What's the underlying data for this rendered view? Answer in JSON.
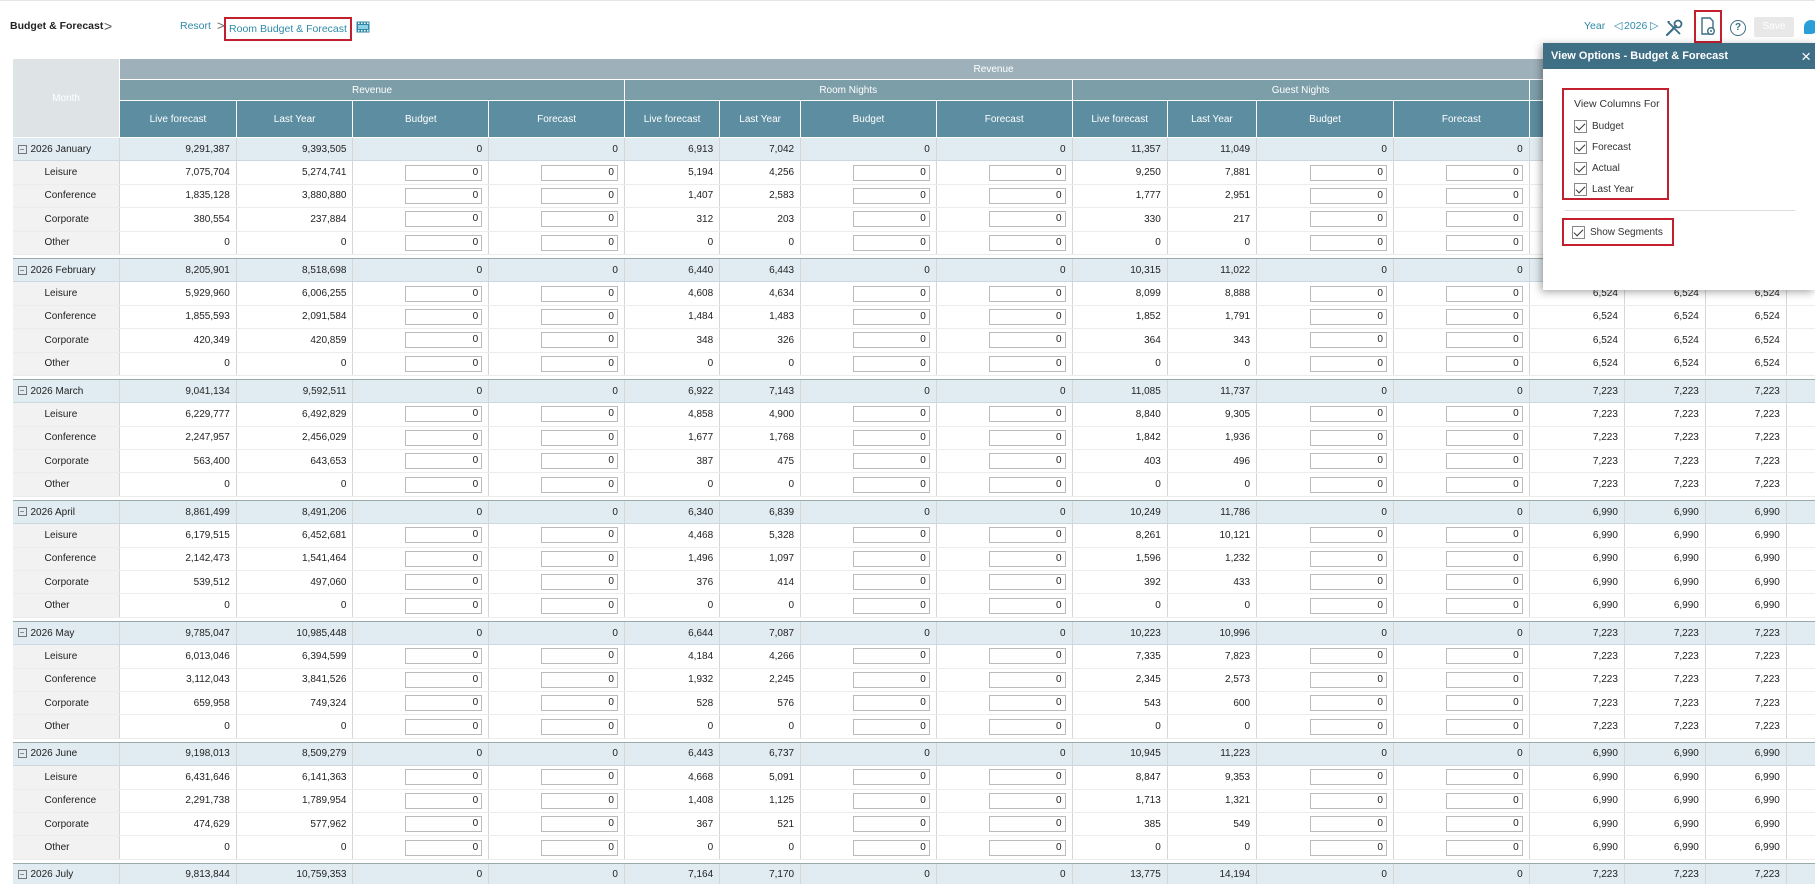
{
  "header": {
    "app_title": "Budget & Forecast",
    "app_chevron": ">",
    "breadcrumb_resort": "Resort",
    "breadcrumb_sep": ">",
    "breadcrumb_current": "Room Budget & Forecast",
    "year_label": "Year",
    "year_prev": "◁",
    "year_value": "2026",
    "year_next": "▷",
    "help_label": "?",
    "save_label": "Save",
    "accent_color": "#2f8aa8",
    "highlight_color": "#c3202f"
  },
  "grid": {
    "month_header": "Month",
    "top_group": "Revenue",
    "groups": [
      "Revenue",
      "Room Nights",
      "Guest Nights"
    ],
    "columns": [
      "Live forecast",
      "Last Year",
      "Budget",
      "Forecast",
      "Live forecast",
      "Last Year",
      "Budget",
      "Forecast",
      "Live forecast",
      "Last Year",
      "Budget",
      "Forecast",
      "Live forecast"
    ],
    "toggle_glyph": "−",
    "months": [
      {
        "label": "2026 January",
        "total": [
          "9,291,387",
          "9,393,505",
          "0",
          "0",
          "6,913",
          "7,042",
          "0",
          "0",
          "11,357",
          "11,049",
          "0",
          "0",
          "",
          "",
          "",
          ""
        ],
        "segments": [
          {
            "name": "Leisure",
            "v": [
              "7,075,704",
              "5,274,741",
              "0",
              "0",
              "5,194",
              "4,256",
              "0",
              "0",
              "9,250",
              "7,881",
              "0",
              "0",
              "",
              "",
              "",
              ""
            ]
          },
          {
            "name": "Conference",
            "v": [
              "1,835,128",
              "3,880,880",
              "0",
              "0",
              "1,407",
              "2,583",
              "0",
              "0",
              "1,777",
              "2,951",
              "0",
              "0",
              "",
              "",
              "",
              ""
            ]
          },
          {
            "name": "Corporate",
            "v": [
              "380,554",
              "237,884",
              "0",
              "0",
              "312",
              "203",
              "0",
              "0",
              "330",
              "217",
              "0",
              "0",
              "",
              "",
              "",
              ""
            ]
          },
          {
            "name": "Other",
            "v": [
              "0",
              "0",
              "0",
              "0",
              "0",
              "0",
              "0",
              "0",
              "0",
              "0",
              "0",
              "0",
              "",
              "",
              "",
              ""
            ]
          }
        ]
      },
      {
        "label": "2026 February",
        "total": [
          "8,205,901",
          "8,518,698",
          "0",
          "0",
          "6,440",
          "6,443",
          "0",
          "0",
          "10,315",
          "11,022",
          "0",
          "0",
          "",
          "",
          "",
          ""
        ],
        "segments": [
          {
            "name": "Leisure",
            "v": [
              "5,929,960",
              "6,006,255",
              "0",
              "0",
              "4,608",
              "4,634",
              "0",
              "0",
              "8,099",
              "8,888",
              "0",
              "0",
              "6,524",
              "6,524",
              "6,524",
              "6,524"
            ]
          },
          {
            "name": "Conference",
            "v": [
              "1,855,593",
              "2,091,584",
              "0",
              "0",
              "1,484",
              "1,483",
              "0",
              "0",
              "1,852",
              "1,791",
              "0",
              "0",
              "6,524",
              "6,524",
              "6,524",
              "6,524"
            ]
          },
          {
            "name": "Corporate",
            "v": [
              "420,349",
              "420,859",
              "0",
              "0",
              "348",
              "326",
              "0",
              "0",
              "364",
              "343",
              "0",
              "0",
              "6,524",
              "6,524",
              "6,524",
              "6,524"
            ]
          },
          {
            "name": "Other",
            "v": [
              "0",
              "0",
              "0",
              "0",
              "0",
              "0",
              "0",
              "0",
              "0",
              "0",
              "0",
              "0",
              "6,524",
              "6,524",
              "6,524",
              "6,524"
            ]
          }
        ]
      },
      {
        "label": "2026 March",
        "total": [
          "9,041,134",
          "9,592,511",
          "0",
          "0",
          "6,922",
          "7,143",
          "0",
          "0",
          "11,085",
          "11,737",
          "0",
          "0",
          "7,223",
          "7,223",
          "7,223",
          "7,223"
        ],
        "segments": [
          {
            "name": "Leisure",
            "v": [
              "6,229,777",
              "6,492,829",
              "0",
              "0",
              "4,858",
              "4,900",
              "0",
              "0",
              "8,840",
              "9,305",
              "0",
              "0",
              "7,223",
              "7,223",
              "7,223",
              "7,223"
            ]
          },
          {
            "name": "Conference",
            "v": [
              "2,247,957",
              "2,456,029",
              "0",
              "0",
              "1,677",
              "1,768",
              "0",
              "0",
              "1,842",
              "1,936",
              "0",
              "0",
              "7,223",
              "7,223",
              "7,223",
              "7,223"
            ]
          },
          {
            "name": "Corporate",
            "v": [
              "563,400",
              "643,653",
              "0",
              "0",
              "387",
              "475",
              "0",
              "0",
              "403",
              "496",
              "0",
              "0",
              "7,223",
              "7,223",
              "7,223",
              "7,223"
            ]
          },
          {
            "name": "Other",
            "v": [
              "0",
              "0",
              "0",
              "0",
              "0",
              "0",
              "0",
              "0",
              "0",
              "0",
              "0",
              "0",
              "7,223",
              "7,223",
              "7,223",
              "7,223"
            ]
          }
        ]
      },
      {
        "label": "2026 April",
        "total": [
          "8,861,499",
          "8,491,206",
          "0",
          "0",
          "6,340",
          "6,839",
          "0",
          "0",
          "10,249",
          "11,786",
          "0",
          "0",
          "6,990",
          "6,990",
          "6,990",
          "6,990"
        ],
        "segments": [
          {
            "name": "Leisure",
            "v": [
              "6,179,515",
              "6,452,681",
              "0",
              "0",
              "4,468",
              "5,328",
              "0",
              "0",
              "8,261",
              "10,121",
              "0",
              "0",
              "6,990",
              "6,990",
              "6,990",
              "6,990"
            ]
          },
          {
            "name": "Conference",
            "v": [
              "2,142,473",
              "1,541,464",
              "0",
              "0",
              "1,496",
              "1,097",
              "0",
              "0",
              "1,596",
              "1,232",
              "0",
              "0",
              "6,990",
              "6,990",
              "6,990",
              "6,990"
            ]
          },
          {
            "name": "Corporate",
            "v": [
              "539,512",
              "497,060",
              "0",
              "0",
              "376",
              "414",
              "0",
              "0",
              "392",
              "433",
              "0",
              "0",
              "6,990",
              "6,990",
              "6,990",
              "6,990"
            ]
          },
          {
            "name": "Other",
            "v": [
              "0",
              "0",
              "0",
              "0",
              "0",
              "0",
              "0",
              "0",
              "0",
              "0",
              "0",
              "0",
              "6,990",
              "6,990",
              "6,990",
              "6,990"
            ]
          }
        ]
      },
      {
        "label": "2026 May",
        "total": [
          "9,785,047",
          "10,985,448",
          "0",
          "0",
          "6,644",
          "7,087",
          "0",
          "0",
          "10,223",
          "10,996",
          "0",
          "0",
          "7,223",
          "7,223",
          "7,223",
          "7,223"
        ],
        "segments": [
          {
            "name": "Leisure",
            "v": [
              "6,013,046",
              "6,394,599",
              "0",
              "0",
              "4,184",
              "4,266",
              "0",
              "0",
              "7,335",
              "7,823",
              "0",
              "0",
              "7,223",
              "7,223",
              "7,223",
              "7,223"
            ]
          },
          {
            "name": "Conference",
            "v": [
              "3,112,043",
              "3,841,526",
              "0",
              "0",
              "1,932",
              "2,245",
              "0",
              "0",
              "2,345",
              "2,573",
              "0",
              "0",
              "7,223",
              "7,223",
              "7,223",
              "7,223"
            ]
          },
          {
            "name": "Corporate",
            "v": [
              "659,958",
              "749,324",
              "0",
              "0",
              "528",
              "576",
              "0",
              "0",
              "543",
              "600",
              "0",
              "0",
              "7,223",
              "7,223",
              "7,223",
              "7,223"
            ]
          },
          {
            "name": "Other",
            "v": [
              "0",
              "0",
              "0",
              "0",
              "0",
              "0",
              "0",
              "0",
              "0",
              "0",
              "0",
              "0",
              "7,223",
              "7,223",
              "7,223",
              "7,223"
            ]
          }
        ]
      },
      {
        "label": "2026 June",
        "total": [
          "9,198,013",
          "8,509,279",
          "0",
          "0",
          "6,443",
          "6,737",
          "0",
          "0",
          "10,945",
          "11,223",
          "0",
          "0",
          "6,990",
          "6,990",
          "6,990",
          "6,990"
        ],
        "segments": [
          {
            "name": "Leisure",
            "v": [
              "6,431,646",
              "6,141,363",
              "0",
              "0",
              "4,668",
              "5,091",
              "0",
              "0",
              "8,847",
              "9,353",
              "0",
              "0",
              "6,990",
              "6,990",
              "6,990",
              "6,990"
            ]
          },
          {
            "name": "Conference",
            "v": [
              "2,291,738",
              "1,789,954",
              "0",
              "0",
              "1,408",
              "1,125",
              "0",
              "0",
              "1,713",
              "1,321",
              "0",
              "0",
              "6,990",
              "6,990",
              "6,990",
              "6,990"
            ]
          },
          {
            "name": "Corporate",
            "v": [
              "474,629",
              "577,962",
              "0",
              "0",
              "367",
              "521",
              "0",
              "0",
              "385",
              "549",
              "0",
              "0",
              "6,990",
              "6,990",
              "6,990",
              "6,990"
            ]
          },
          {
            "name": "Other",
            "v": [
              "0",
              "0",
              "0",
              "0",
              "0",
              "0",
              "0",
              "0",
              "0",
              "0",
              "0",
              "0",
              "6,990",
              "6,990",
              "6,990",
              "6,990"
            ]
          }
        ]
      },
      {
        "label": "2026 July",
        "total": [
          "9,813,844",
          "10,759,353",
          "0",
          "0",
          "7,164",
          "7,170",
          "0",
          "0",
          "13,775",
          "14,194",
          "0",
          "0",
          "7,223",
          "7,223",
          "7,223",
          "7,223"
        ],
        "segments": [
          {
            "name": "Leisure",
            "v": [
              "8,615,887",
              "10,010,662",
              "0",
              "0",
              "6,464",
              "6,752",
              "0",
              "0",
              "12,867",
              "13,539",
              "0",
              "0",
              "7,223",
              "7,223",
              "7,223",
              "7,223"
            ]
          }
        ]
      }
    ]
  },
  "view_options": {
    "title": "View Options - Budget & Forecast",
    "close": "×",
    "columns_title": "View Columns For",
    "options": [
      "Budget",
      "Forecast",
      "Actual",
      "Last Year"
    ],
    "checked": [
      true,
      true,
      true,
      true
    ],
    "show_segments_label": "Show Segments",
    "show_segments_checked": true
  }
}
